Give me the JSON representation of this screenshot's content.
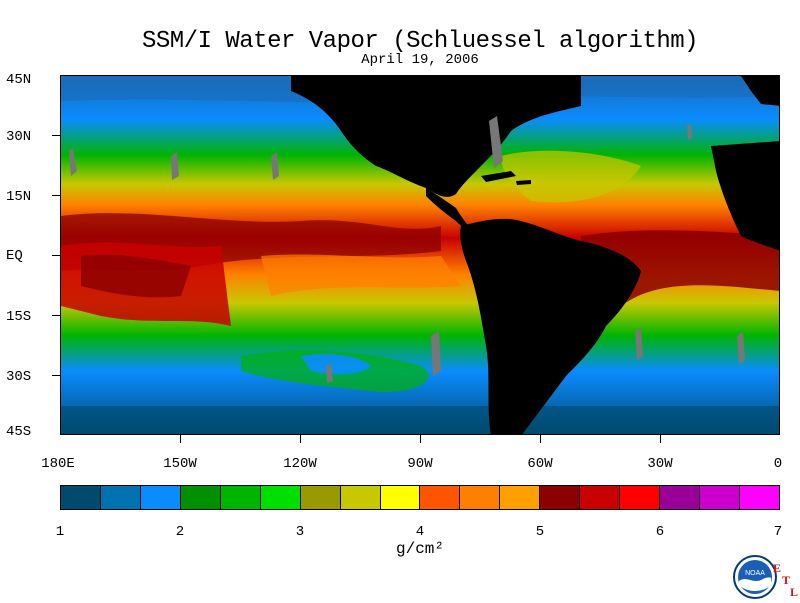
{
  "title": "SSM/I Water Vapor (Schluessel algorithm)",
  "subtitle": "April 19, 2006",
  "lat_labels": [
    "45N",
    "30N",
    "15N",
    "EQ",
    "15S",
    "30S",
    "45S"
  ],
  "lon_labels": [
    "180E",
    "150W",
    "120W",
    "90W",
    "60W",
    "30W",
    "0"
  ],
  "colorbar": {
    "labels": [
      "1",
      "2",
      "3",
      "4",
      "5",
      "6",
      "7"
    ],
    "colors": [
      "#004a6e",
      "#0072b2",
      "#0a8cff",
      "#009000",
      "#00b400",
      "#00e000",
      "#999900",
      "#c8c800",
      "#ffff00",
      "#ff5500",
      "#ff8000",
      "#ffa000",
      "#8b0000",
      "#c80000",
      "#ff0000",
      "#990099",
      "#cc00cc",
      "#ff00ff"
    ],
    "unit": "g/cm²"
  },
  "logo": {
    "text": "NOAA",
    "letters": [
      "E",
      "T",
      "L"
    ]
  }
}
